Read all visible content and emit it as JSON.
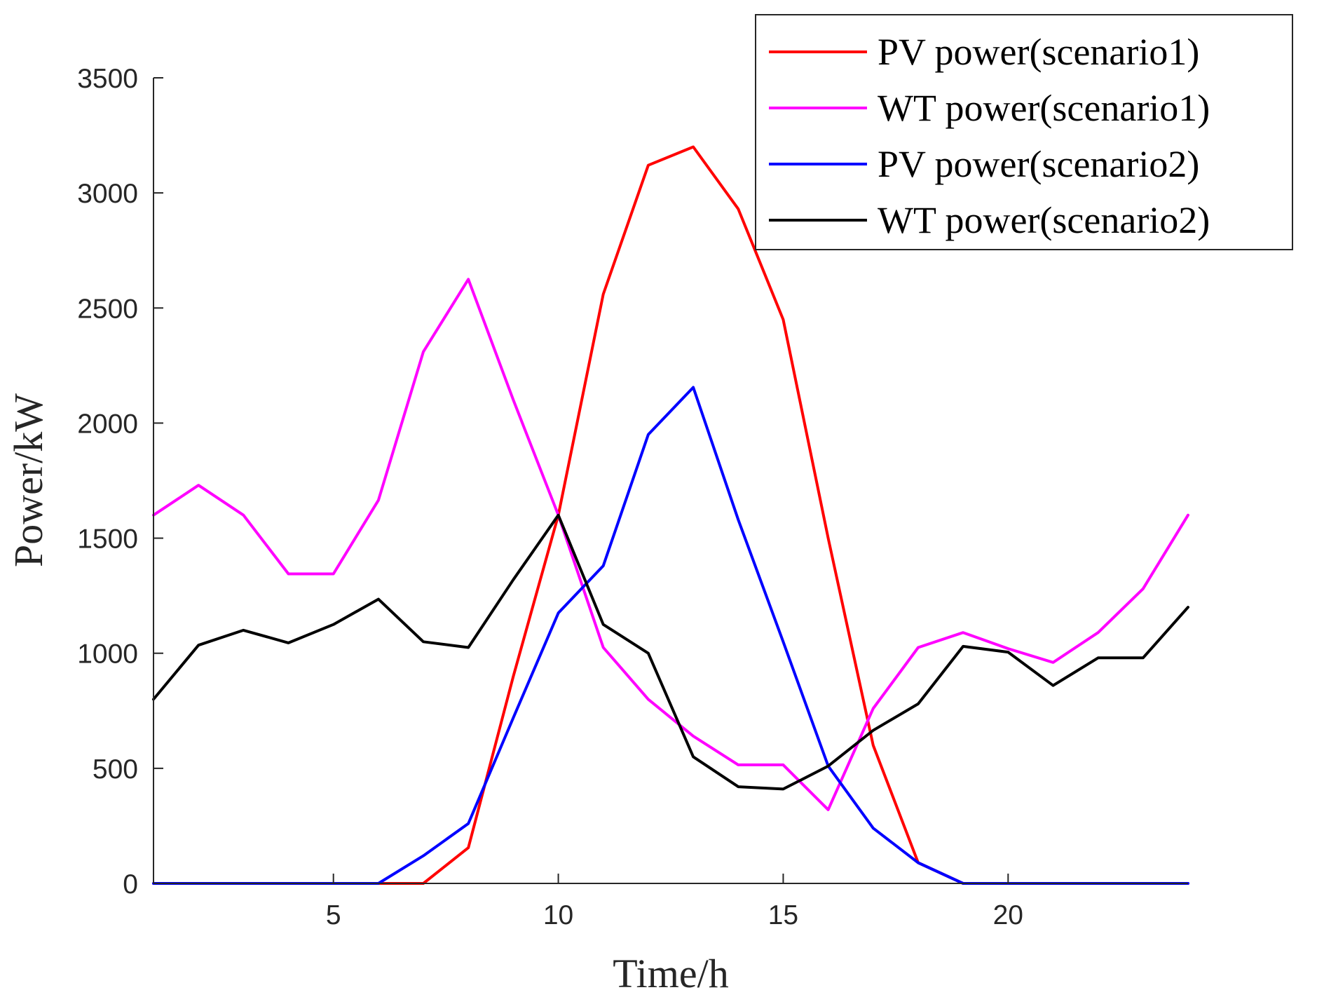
{
  "chart_data": {
    "type": "line",
    "xlabel": "Time/h",
    "ylabel": "Power/kW",
    "xlim": [
      1,
      24
    ],
    "ylim": [
      0,
      3500
    ],
    "xticks": [
      5,
      10,
      15,
      20
    ],
    "yticks": [
      0,
      500,
      1000,
      1500,
      2000,
      2500,
      3000,
      3500
    ],
    "grid": false,
    "legend_position": "top-right",
    "x": [
      1,
      2,
      3,
      4,
      5,
      6,
      7,
      8,
      9,
      10,
      11,
      12,
      13,
      14,
      15,
      16,
      17,
      18,
      19,
      20,
      21,
      22,
      23,
      24
    ],
    "series": [
      {
        "name": "PV power(scenario1)",
        "color": "#ff0000",
        "values": [
          0,
          0,
          0,
          0,
          0,
          0,
          0,
          155,
          900,
          1600,
          2560,
          3120,
          3200,
          2930,
          2450,
          1500,
          600,
          90,
          0,
          0,
          0,
          0,
          0,
          0
        ]
      },
      {
        "name": "WT power(scenario1)",
        "color": "#ff00ff",
        "values": [
          1600,
          1730,
          1600,
          1345,
          1345,
          1665,
          2310,
          2625,
          2100,
          1600,
          1025,
          800,
          640,
          515,
          515,
          320,
          760,
          1025,
          1090,
          1020,
          960,
          1090,
          1280,
          1600
        ]
      },
      {
        "name": "PV power(scenario2)",
        "color": "#0000ff",
        "values": [
          0,
          0,
          0,
          0,
          0,
          0,
          120,
          260,
          720,
          1175,
          1380,
          1950,
          2155,
          1580,
          1050,
          510,
          240,
          90,
          0,
          0,
          0,
          0,
          0,
          0
        ]
      },
      {
        "name": "WT power(scenario2)",
        "color": "#000000",
        "values": [
          800,
          1035,
          1100,
          1045,
          1125,
          1235,
          1050,
          1025,
          1320,
          1600,
          1125,
          1000,
          550,
          420,
          410,
          510,
          665,
          780,
          1030,
          1005,
          860,
          980,
          980,
          1200
        ]
      }
    ]
  }
}
